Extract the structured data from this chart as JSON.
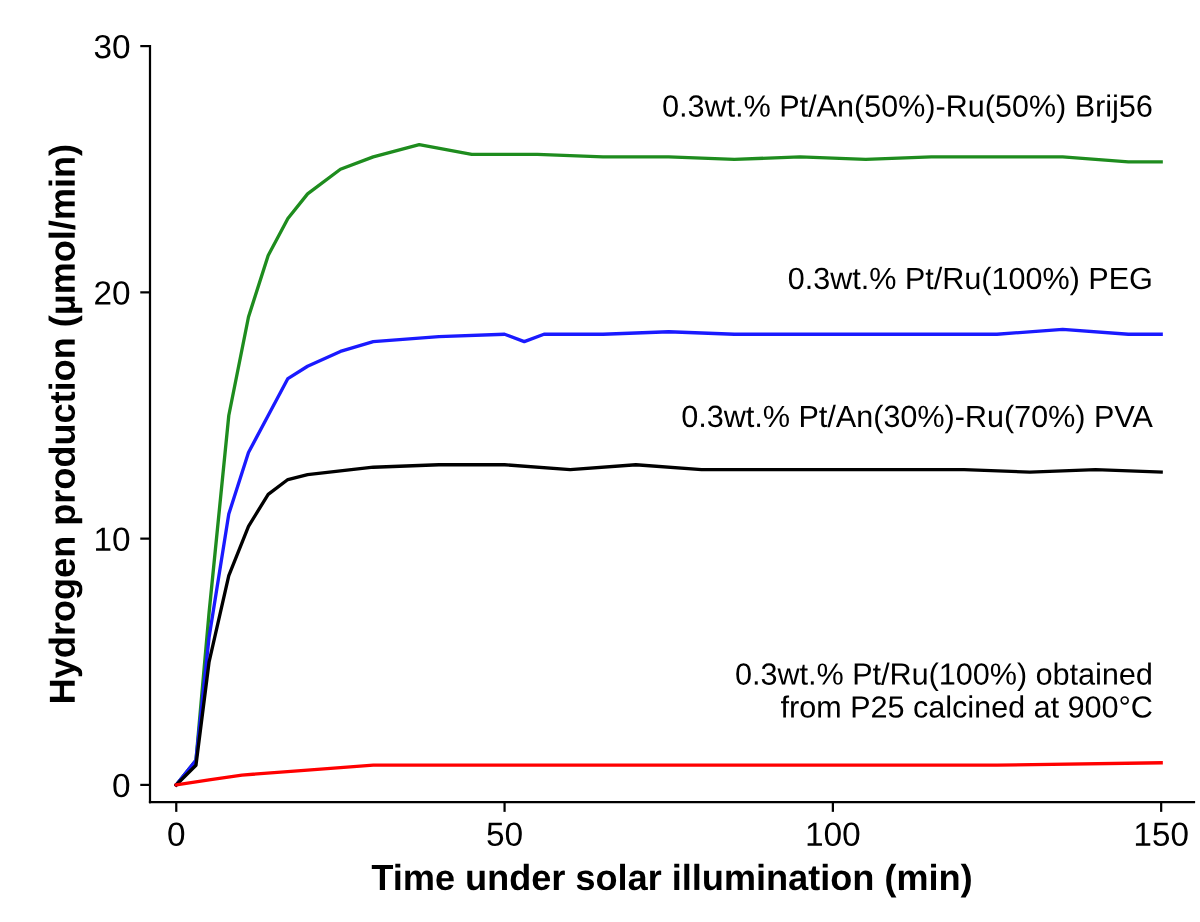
{
  "chart_data": {
    "type": "line",
    "xlabel": "Time under solar illumination (min)",
    "ylabel": "Hydrogen production (µmol/min)",
    "xlim": [
      -4,
      155
    ],
    "ylim": [
      -0.7,
      30
    ],
    "xticks": [
      0,
      50,
      100,
      150
    ],
    "yticks": [
      0,
      10,
      20,
      30
    ],
    "grid": false,
    "marker": "none",
    "line_style": "solid",
    "series": [
      {
        "name": "0.3wt.% Pt/An(50%)-Ru(50%) Brij56",
        "color": "#1e8c1e",
        "x": [
          0,
          3,
          5,
          8,
          11,
          14,
          17,
          20,
          25,
          30,
          37,
          45,
          55,
          65,
          75,
          85,
          95,
          105,
          115,
          125,
          135,
          145,
          150
        ],
        "values": [
          0,
          1,
          7,
          15,
          19,
          21.5,
          23,
          24,
          25,
          25.5,
          26,
          25.6,
          25.6,
          25.5,
          25.5,
          25.4,
          25.5,
          25.4,
          25.5,
          25.5,
          25.5,
          25.3,
          25.3
        ]
      },
      {
        "name": "0.3wt.% Pt/Ru(100%) PEG",
        "color": "#1a1aff",
        "x": [
          0,
          3,
          5,
          8,
          11,
          14,
          17,
          20,
          25,
          30,
          40,
          50,
          53,
          56,
          65,
          75,
          85,
          95,
          105,
          115,
          125,
          135,
          145,
          150
        ],
        "values": [
          0,
          1,
          6,
          11,
          13.5,
          15,
          16.5,
          17,
          17.6,
          18,
          18.2,
          18.3,
          18,
          18.3,
          18.3,
          18.4,
          18.3,
          18.3,
          18.3,
          18.3,
          18.3,
          18.5,
          18.3,
          18.3
        ]
      },
      {
        "name": "0.3wt.% Pt/An(30%)-Ru(70%) PVA",
        "color": "#000000",
        "x": [
          0,
          3,
          5,
          8,
          11,
          14,
          17,
          20,
          30,
          40,
          50,
          60,
          70,
          80,
          90,
          100,
          110,
          120,
          130,
          140,
          150
        ],
        "values": [
          0,
          0.8,
          5,
          8.5,
          10.5,
          11.8,
          12.4,
          12.6,
          12.9,
          13,
          13,
          12.8,
          13,
          12.8,
          12.8,
          12.8,
          12.8,
          12.8,
          12.7,
          12.8,
          12.7
        ]
      },
      {
        "name": "0.3wt.% Pt/Ru(100%) obtained\nfrom P25 calcined at 900°C",
        "color": "#ff0000",
        "x": [
          0,
          5,
          10,
          20,
          30,
          50,
          75,
          100,
          125,
          150
        ],
        "values": [
          0,
          0.2,
          0.4,
          0.6,
          0.8,
          0.8,
          0.8,
          0.8,
          0.8,
          0.9
        ]
      }
    ]
  }
}
